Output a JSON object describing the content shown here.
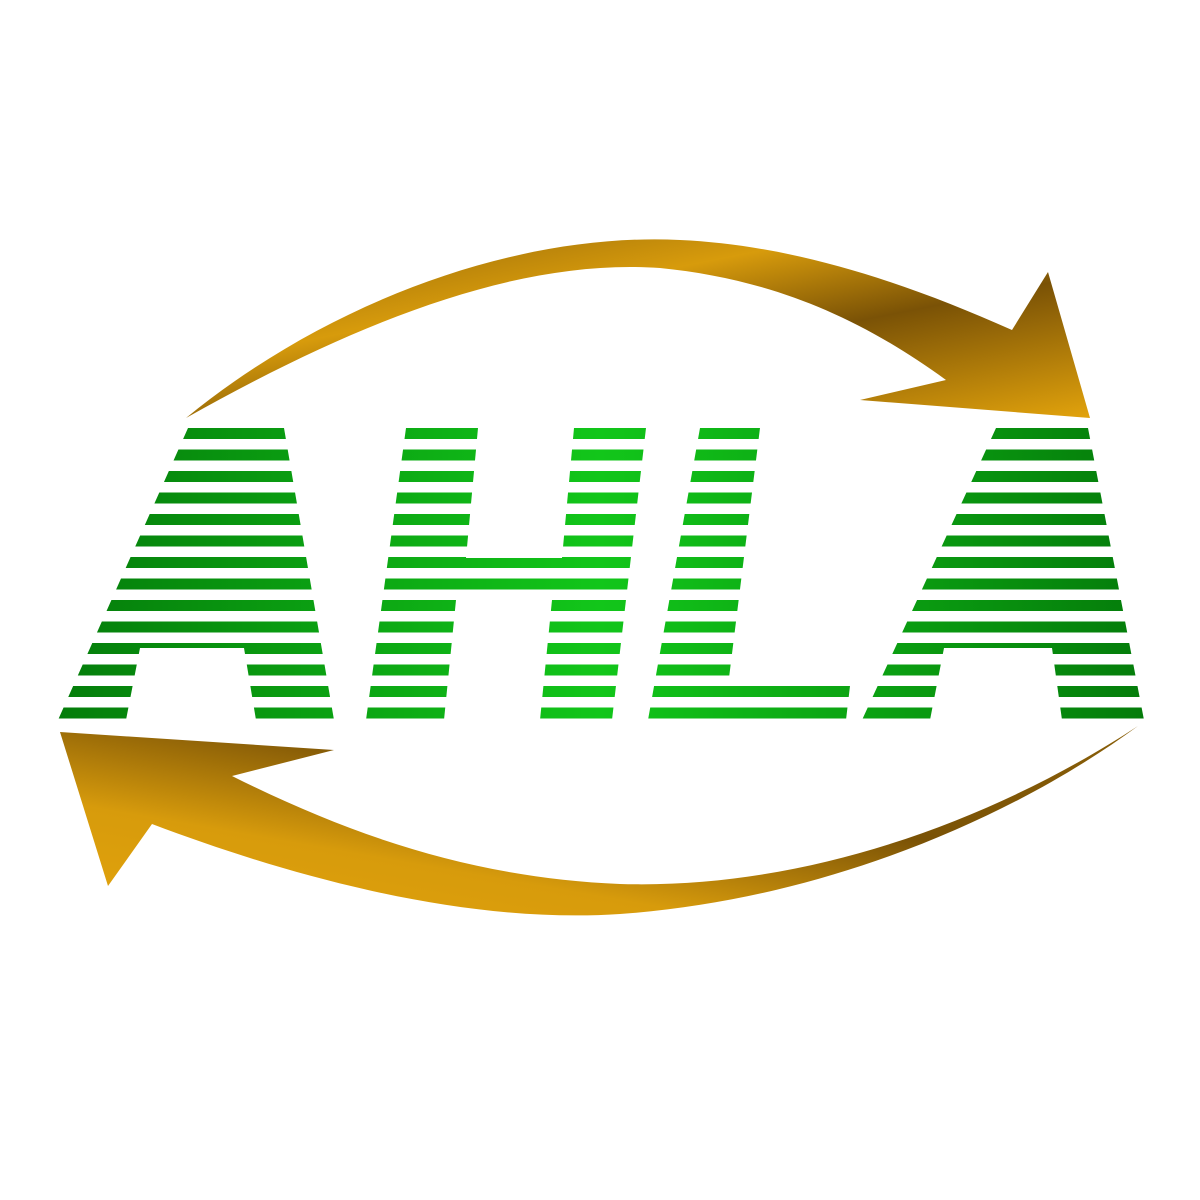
{
  "logo": {
    "wordmark": "AHLA",
    "colors": {
      "green_dark": "#047a0a",
      "green_light": "#12c61a",
      "gold_light": "#e2a30c",
      "gold_dark": "#8a5f08",
      "background": "#ffffff"
    },
    "icons": [
      "circular-arrow-top",
      "circular-arrow-bottom"
    ]
  }
}
